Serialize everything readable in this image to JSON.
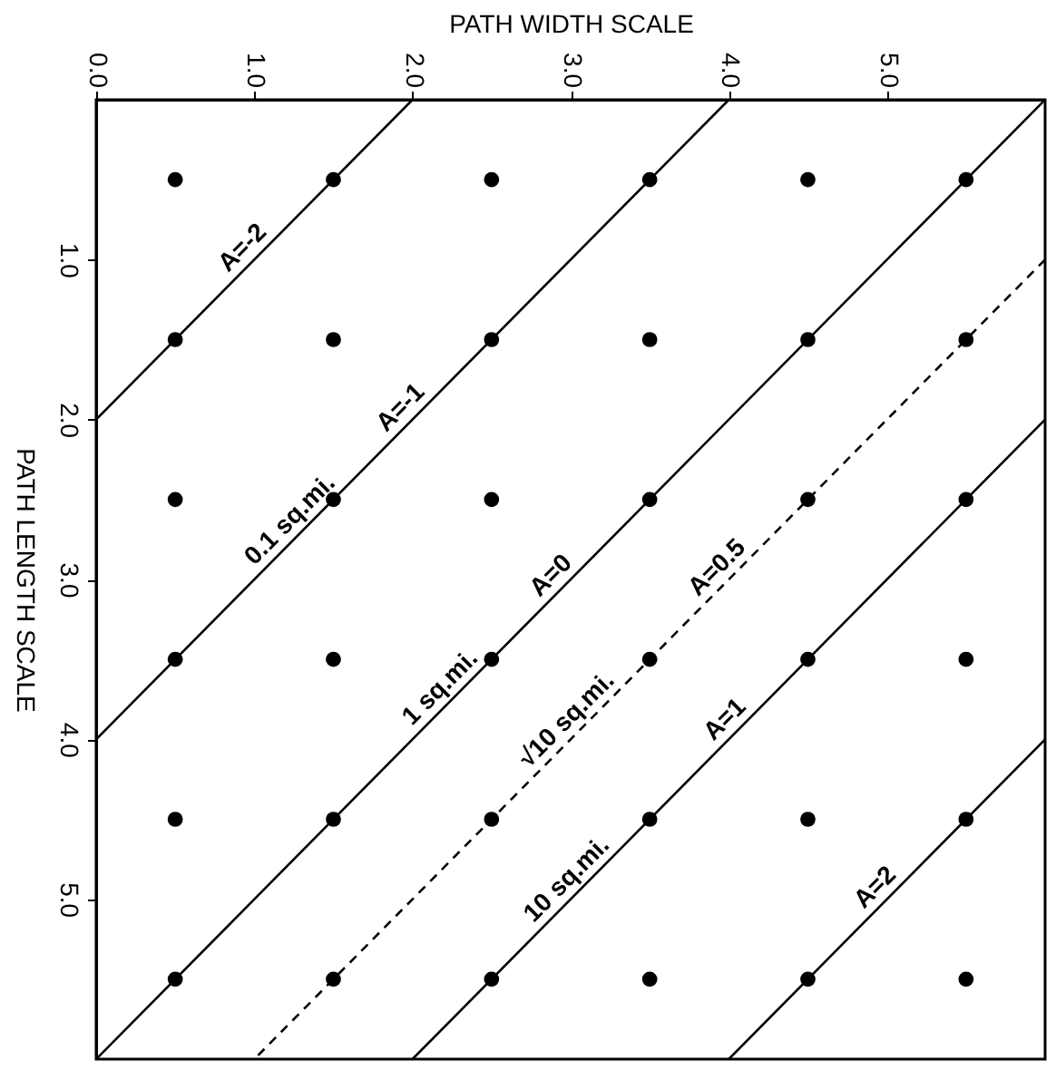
{
  "chart_data": {
    "type": "scatter",
    "xlabel": "PATH WIDTH SCALE",
    "ylabel": "PATH LENGTH SCALE",
    "xlim": [
      0,
      6
    ],
    "ylim": [
      6,
      0
    ],
    "xticks": [
      {
        "value": 0,
        "label": "0.0"
      },
      {
        "value": 1,
        "label": "1.0"
      },
      {
        "value": 2,
        "label": "2.0"
      },
      {
        "value": 3,
        "label": "3.0"
      },
      {
        "value": 4,
        "label": "4.0"
      },
      {
        "value": 5,
        "label": "5.0"
      }
    ],
    "yticks": [
      {
        "value": 1,
        "label": "1.0"
      },
      {
        "value": 2,
        "label": "2.0"
      },
      {
        "value": 3,
        "label": "3.0"
      },
      {
        "value": 4,
        "label": "4.0"
      },
      {
        "value": 5,
        "label": "5.0"
      }
    ],
    "grid": false,
    "series": [
      {
        "marker": "circle",
        "color": "#000000",
        "x": [
          0.5,
          1.5,
          2.5,
          3.5,
          4.5,
          5.5,
          0.5,
          1.5,
          2.5,
          3.5,
          4.5,
          5.5,
          0.5,
          1.5,
          2.5,
          3.5,
          4.5,
          5.5,
          0.5,
          1.5,
          2.5,
          3.5,
          4.5,
          5.5,
          0.5,
          1.5,
          2.5,
          3.5,
          4.5,
          5.5,
          0.5,
          1.5,
          2.5,
          3.5,
          4.5,
          5.5
        ],
        "values": [
          0.5,
          0.5,
          0.5,
          0.5,
          0.5,
          0.5,
          1.5,
          1.5,
          1.5,
          1.5,
          1.5,
          1.5,
          2.5,
          2.5,
          2.5,
          2.5,
          2.5,
          2.5,
          3.5,
          3.5,
          3.5,
          3.5,
          3.5,
          3.5,
          4.5,
          4.5,
          4.5,
          4.5,
          4.5,
          4.5,
          5.5,
          5.5,
          5.5,
          5.5,
          5.5,
          5.5
        ]
      },
      {
        "type": "line",
        "color": "#000000",
        "line_style": "solid",
        "x": [
          2,
          0
        ],
        "values": [
          0,
          2
        ]
      },
      {
        "type": "line",
        "color": "#000000",
        "line_style": "solid",
        "x": [
          4,
          0
        ],
        "values": [
          0,
          4
        ]
      },
      {
        "type": "line",
        "color": "#000000",
        "line_style": "solid",
        "x": [
          6,
          0
        ],
        "values": [
          0,
          6
        ]
      },
      {
        "type": "line",
        "color": "#000000",
        "line_style": "dashed",
        "x": [
          6,
          1
        ],
        "values": [
          1,
          6
        ]
      },
      {
        "type": "line",
        "color": "#000000",
        "line_style": "solid",
        "x": [
          6,
          2
        ],
        "values": [
          2,
          6
        ]
      },
      {
        "type": "line",
        "color": "#000000",
        "line_style": "solid",
        "x": [
          6,
          4
        ],
        "values": [
          4,
          6
        ]
      }
    ],
    "annotations": [
      {
        "text": "A=-2",
        "x": 1.0,
        "y": 1.0
      },
      {
        "text": "A=-1",
        "x": 2.0,
        "y": 2.0
      },
      {
        "text": "0.1 sq.mi.",
        "x": 1.3,
        "y": 2.7
      },
      {
        "text": "A=0",
        "x": 2.95,
        "y": 3.05
      },
      {
        "text": "1 sq.mi.",
        "x": 2.25,
        "y": 3.75
      },
      {
        "text": "A=0.5",
        "x": 4.0,
        "y": 3.0
      },
      {
        "text": "√10 sq.mi.",
        "x": 3.05,
        "y": 3.95
      },
      {
        "text": "A=1",
        "x": 4.05,
        "y": 3.95
      },
      {
        "text": "10 sq.mi.",
        "x": 3.05,
        "y": 4.95
      },
      {
        "text": "A=2",
        "x": 5.0,
        "y": 5.0
      }
    ]
  }
}
